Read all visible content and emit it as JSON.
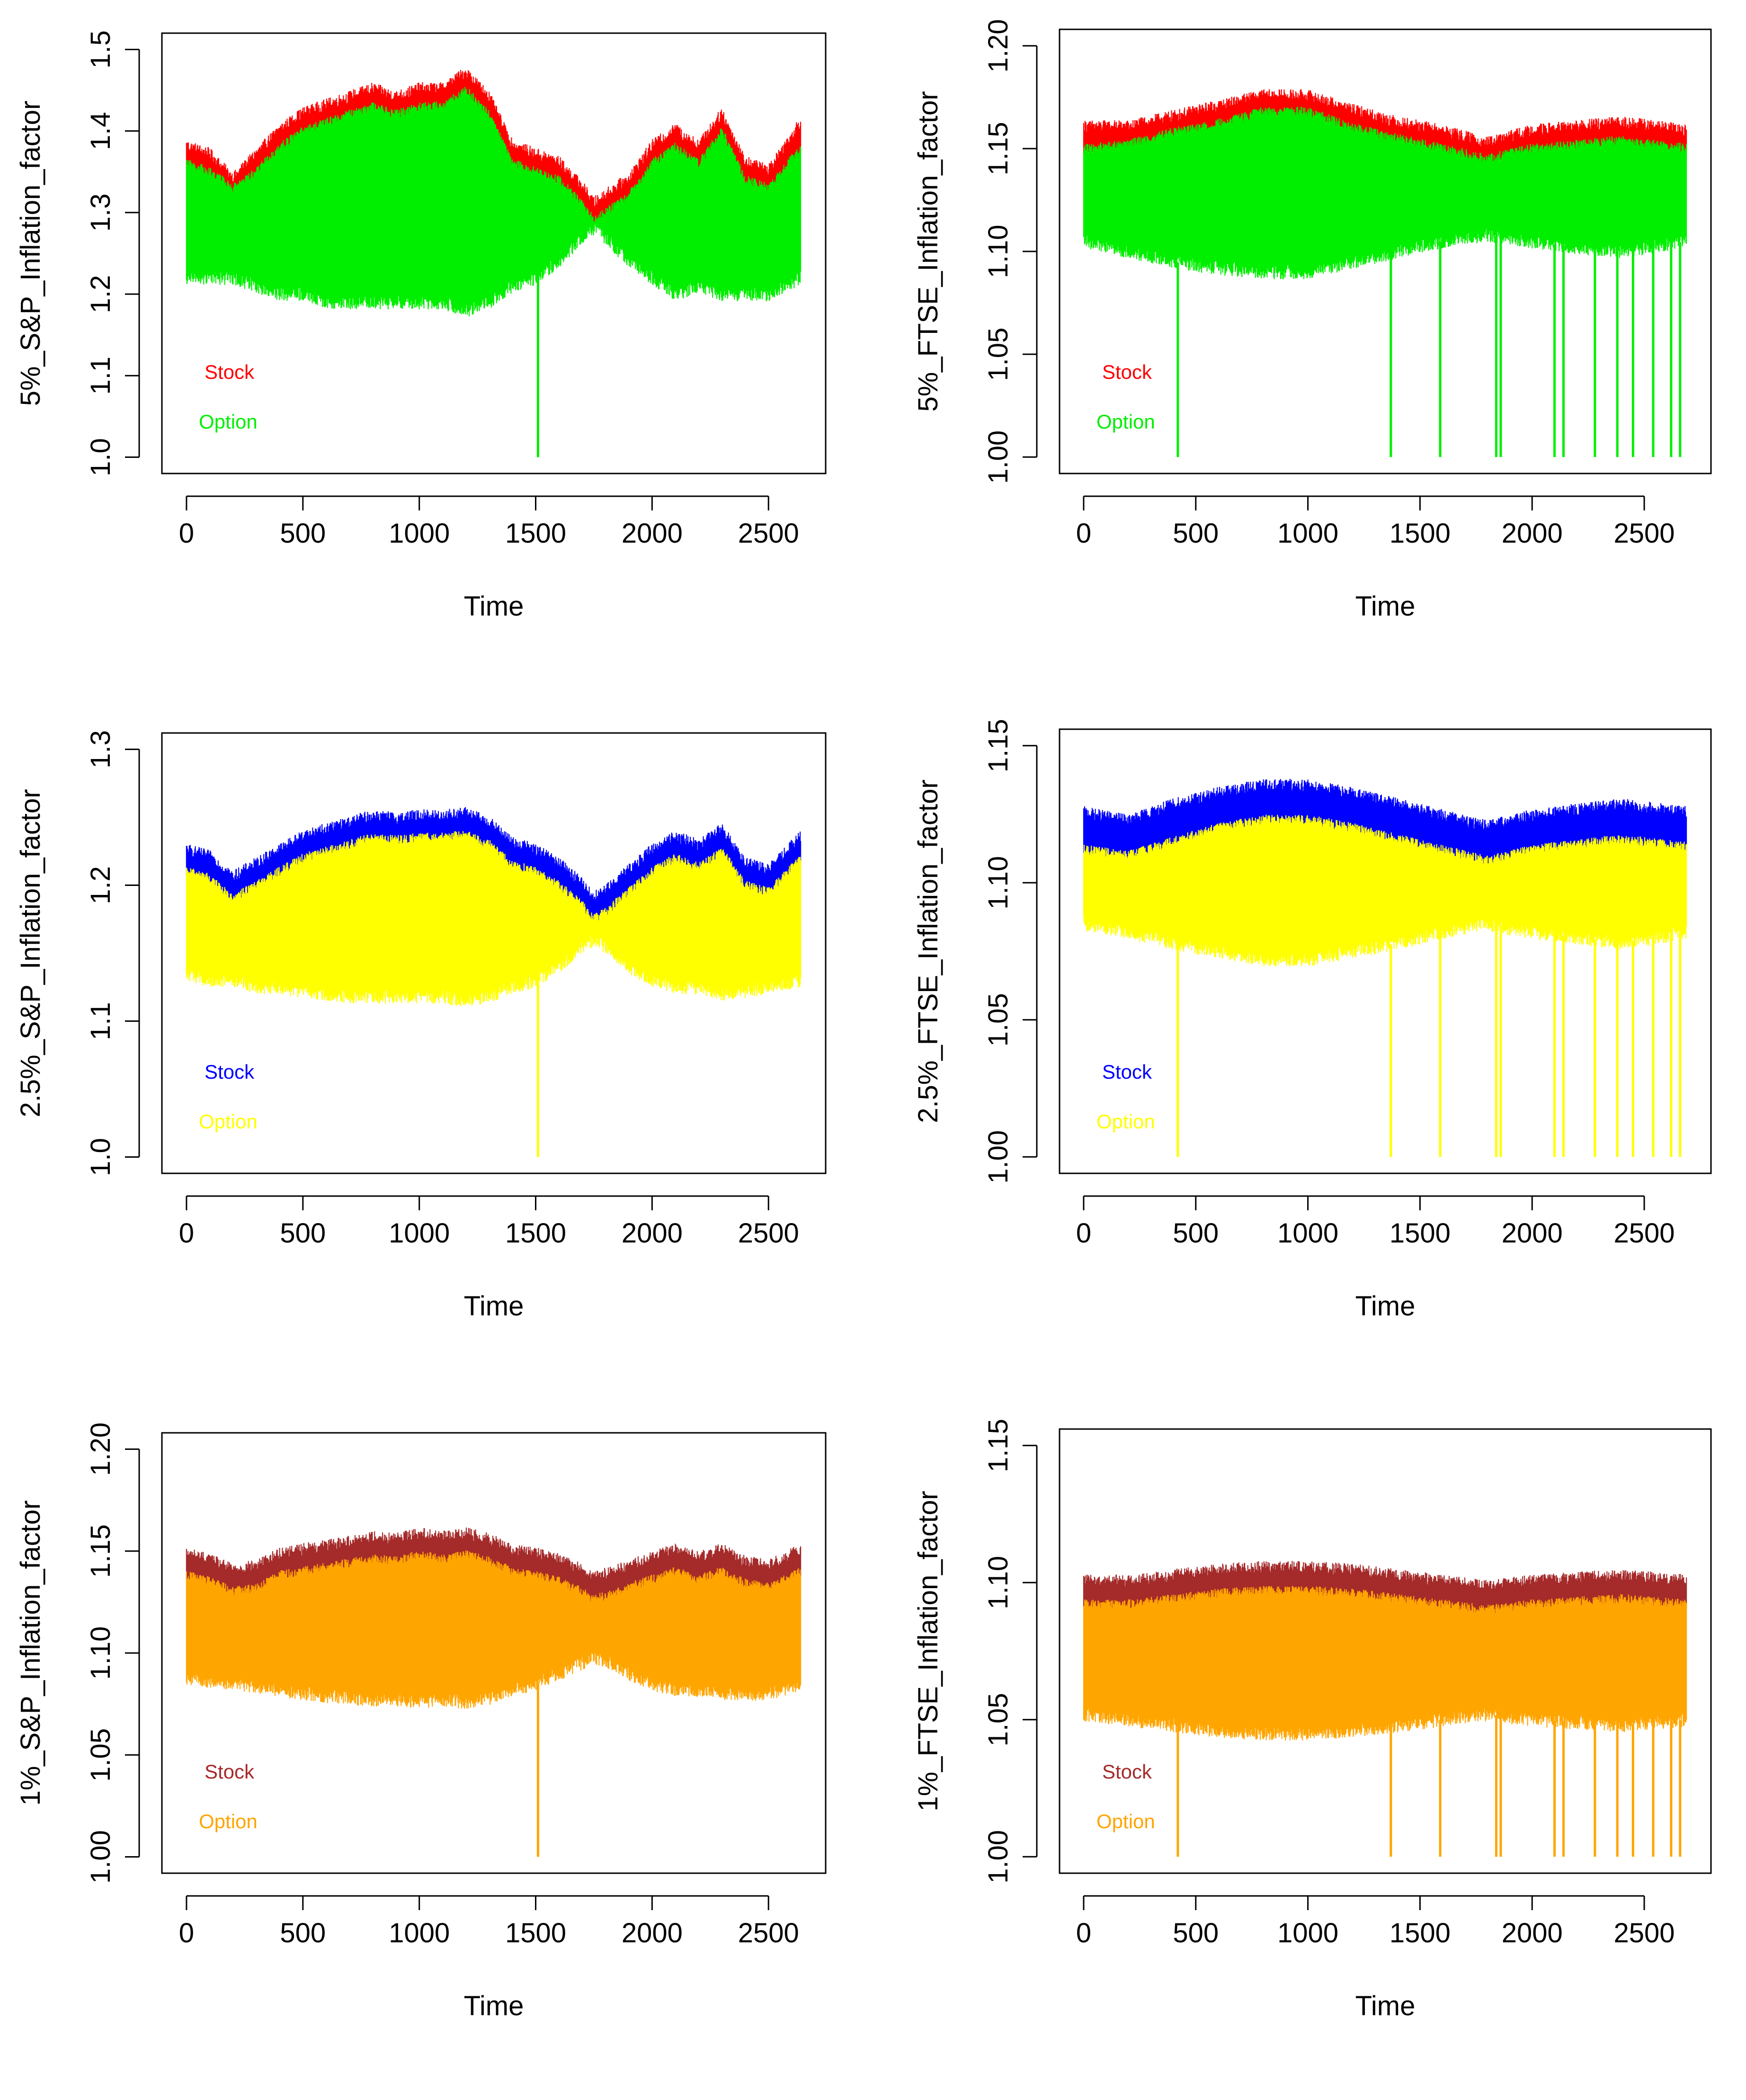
{
  "chart_data": [
    {
      "type": "line",
      "title": "",
      "xlabel": "Time",
      "ylabel": "5%_S&P_Inflation_factor",
      "xlim": [
        0,
        2640
      ],
      "ylim": [
        1.0,
        1.5
      ],
      "xticks": [
        0,
        500,
        1000,
        1500,
        2000,
        2500
      ],
      "yticks": [
        1.0,
        1.1,
        1.2,
        1.3,
        1.4,
        1.5
      ],
      "legend": "bottom-left",
      "n": 2640,
      "option_spikes_at": [
        1510
      ],
      "series": [
        {
          "name": "Stock",
          "color": "#ff0000",
          "envelope_x": [
            0,
            100,
            200,
            300,
            400,
            500,
            600,
            700,
            800,
            900,
            1000,
            1100,
            1200,
            1300,
            1400,
            1500,
            1600,
            1700,
            1750,
            1800,
            1900,
            2000,
            2100,
            2200,
            2300,
            2400,
            2500,
            2640
          ],
          "upper": [
            1.38,
            1.37,
            1.34,
            1.37,
            1.4,
            1.42,
            1.43,
            1.44,
            1.45,
            1.44,
            1.45,
            1.45,
            1.47,
            1.44,
            1.38,
            1.37,
            1.36,
            1.33,
            1.31,
            1.32,
            1.34,
            1.38,
            1.4,
            1.38,
            1.42,
            1.36,
            1.35,
            1.41
          ]
        },
        {
          "name": "Option",
          "color": "#00ee00",
          "envelope_x": [
            0,
            100,
            200,
            300,
            400,
            500,
            600,
            700,
            800,
            900,
            1000,
            1100,
            1200,
            1300,
            1400,
            1500,
            1600,
            1700,
            1750,
            1800,
            1900,
            2000,
            2100,
            2200,
            2300,
            2400,
            2500,
            2640
          ],
          "upper": [
            1.36,
            1.35,
            1.33,
            1.35,
            1.38,
            1.4,
            1.41,
            1.42,
            1.43,
            1.42,
            1.43,
            1.43,
            1.45,
            1.42,
            1.36,
            1.35,
            1.34,
            1.31,
            1.29,
            1.3,
            1.32,
            1.36,
            1.38,
            1.36,
            1.4,
            1.34,
            1.33,
            1.38
          ],
          "lower": [
            1.22,
            1.22,
            1.22,
            1.21,
            1.2,
            1.2,
            1.19,
            1.19,
            1.19,
            1.19,
            1.19,
            1.19,
            1.18,
            1.19,
            1.21,
            1.22,
            1.24,
            1.27,
            1.28,
            1.27,
            1.24,
            1.22,
            1.2,
            1.21,
            1.2,
            1.2,
            1.2,
            1.22
          ]
        }
      ]
    },
    {
      "type": "line",
      "title": "",
      "xlabel": "Time",
      "ylabel": "5%_FTSE_Inflation_factor",
      "xlim": [
        0,
        2690
      ],
      "ylim": [
        1.0,
        1.2
      ],
      "xticks": [
        0,
        500,
        1000,
        1500,
        2000,
        2500
      ],
      "yticks": [
        1.0,
        1.05,
        1.1,
        1.15,
        1.2
      ],
      "legend": "bottom-left",
      "n": 2690,
      "option_spikes_at": [
        420,
        1370,
        1590,
        1840,
        1860,
        2100,
        2140,
        2280,
        2380,
        2450,
        2540,
        2620,
        2660
      ],
      "series": [
        {
          "name": "Stock",
          "color": "#ff0000",
          "envelope_x": [
            0,
            200,
            400,
            600,
            800,
            1000,
            1200,
            1400,
            1600,
            1800,
            2000,
            2200,
            2400,
            2690
          ],
          "upper": [
            1.16,
            1.16,
            1.165,
            1.17,
            1.175,
            1.175,
            1.168,
            1.162,
            1.158,
            1.152,
            1.158,
            1.16,
            1.162,
            1.158
          ]
        },
        {
          "name": "Option",
          "color": "#00ee00",
          "envelope_x": [
            0,
            200,
            400,
            600,
            800,
            1000,
            1200,
            1400,
            1600,
            1800,
            2000,
            2200,
            2400,
            2690
          ],
          "upper": [
            1.15,
            1.152,
            1.158,
            1.162,
            1.168,
            1.168,
            1.16,
            1.155,
            1.15,
            1.145,
            1.15,
            1.152,
            1.154,
            1.15
          ],
          "lower": [
            1.105,
            1.1,
            1.095,
            1.092,
            1.09,
            1.09,
            1.095,
            1.1,
            1.105,
            1.108,
            1.105,
            1.102,
            1.1,
            1.105
          ]
        }
      ]
    },
    {
      "type": "line",
      "title": "",
      "xlabel": "Time",
      "ylabel": "2.5%_S&P_Inflation_factor",
      "xlim": [
        0,
        2640
      ],
      "ylim": [
        1.0,
        1.3
      ],
      "xticks": [
        0,
        500,
        1000,
        1500,
        2000,
        2500
      ],
      "yticks": [
        1.0,
        1.1,
        1.2,
        1.3
      ],
      "legend": "bottom-left",
      "n": 2640,
      "option_spikes_at": [
        1510
      ],
      "series": [
        {
          "name": "Stock",
          "color": "#0000ff",
          "envelope_x": [
            0,
            100,
            200,
            300,
            400,
            500,
            600,
            700,
            800,
            900,
            1000,
            1100,
            1200,
            1300,
            1400,
            1500,
            1600,
            1700,
            1750,
            1800,
            1900,
            2000,
            2100,
            2200,
            2300,
            2400,
            2500,
            2640
          ],
          "upper": [
            1.225,
            1.22,
            1.205,
            1.215,
            1.225,
            1.235,
            1.24,
            1.245,
            1.25,
            1.248,
            1.25,
            1.25,
            1.252,
            1.245,
            1.23,
            1.225,
            1.215,
            1.2,
            1.19,
            1.195,
            1.21,
            1.225,
            1.235,
            1.228,
            1.24,
            1.215,
            1.21,
            1.235
          ]
        },
        {
          "name": "Option",
          "color": "#ffff00",
          "envelope_x": [
            0,
            100,
            200,
            300,
            400,
            500,
            600,
            700,
            800,
            900,
            1000,
            1100,
            1200,
            1300,
            1400,
            1500,
            1600,
            1700,
            1750,
            1800,
            1900,
            2000,
            2100,
            2200,
            2300,
            2400,
            2500,
            2640
          ],
          "upper": [
            1.21,
            1.205,
            1.19,
            1.2,
            1.21,
            1.22,
            1.225,
            1.23,
            1.235,
            1.233,
            1.235,
            1.235,
            1.237,
            1.23,
            1.215,
            1.21,
            1.2,
            1.185,
            1.175,
            1.18,
            1.195,
            1.21,
            1.22,
            1.213,
            1.225,
            1.2,
            1.195,
            1.22
          ],
          "lower": [
            1.135,
            1.13,
            1.13,
            1.125,
            1.125,
            1.122,
            1.12,
            1.118,
            1.118,
            1.118,
            1.118,
            1.118,
            1.115,
            1.118,
            1.125,
            1.13,
            1.14,
            1.155,
            1.16,
            1.155,
            1.14,
            1.13,
            1.125,
            1.125,
            1.12,
            1.122,
            1.125,
            1.13
          ]
        }
      ]
    },
    {
      "type": "line",
      "title": "",
      "xlabel": "Time",
      "ylabel": "2.5%_FTSE_Inflation_factor",
      "xlim": [
        0,
        2690
      ],
      "ylim": [
        1.0,
        1.15
      ],
      "xticks": [
        0,
        500,
        1000,
        1500,
        2000,
        2500
      ],
      "yticks": [
        1.0,
        1.05,
        1.1,
        1.15
      ],
      "legend": "bottom-left",
      "n": 2690,
      "option_spikes_at": [
        420,
        1370,
        1590,
        1840,
        1860,
        2100,
        2140,
        2280,
        2380,
        2450,
        2540,
        2620,
        2660
      ],
      "series": [
        {
          "name": "Stock",
          "color": "#0000ff",
          "envelope_x": [
            0,
            200,
            400,
            600,
            800,
            1000,
            1200,
            1400,
            1600,
            1800,
            2000,
            2200,
            2400,
            2690
          ],
          "upper": [
            1.125,
            1.122,
            1.128,
            1.132,
            1.135,
            1.135,
            1.132,
            1.128,
            1.124,
            1.12,
            1.124,
            1.126,
            1.128,
            1.125
          ]
        },
        {
          "name": "Option",
          "color": "#ffff00",
          "envelope_x": [
            0,
            200,
            400,
            600,
            800,
            1000,
            1200,
            1400,
            1600,
            1800,
            2000,
            2200,
            2400,
            2690
          ],
          "upper": [
            1.112,
            1.11,
            1.115,
            1.12,
            1.123,
            1.123,
            1.12,
            1.116,
            1.112,
            1.108,
            1.112,
            1.114,
            1.116,
            1.113
          ],
          "lower": [
            1.085,
            1.082,
            1.078,
            1.075,
            1.072,
            1.072,
            1.075,
            1.078,
            1.082,
            1.085,
            1.082,
            1.08,
            1.078,
            1.082
          ]
        }
      ]
    },
    {
      "type": "line",
      "title": "",
      "xlabel": "Time",
      "ylabel": "1%_S&P_Inflation_factor",
      "xlim": [
        0,
        2640
      ],
      "ylim": [
        1.0,
        1.2
      ],
      "xticks": [
        0,
        500,
        1000,
        1500,
        2000,
        2500
      ],
      "yticks": [
        1.0,
        1.05,
        1.1,
        1.15,
        1.2
      ],
      "legend": "bottom-left",
      "n": 2640,
      "option_spikes_at": [
        1510
      ],
      "series": [
        {
          "name": "Stock",
          "color": "#a52a2a",
          "envelope_x": [
            0,
            100,
            200,
            300,
            400,
            500,
            600,
            700,
            800,
            900,
            1000,
            1100,
            1200,
            1300,
            1400,
            1500,
            1600,
            1700,
            1750,
            1800,
            1900,
            2000,
            2100,
            2200,
            2300,
            2400,
            2500,
            2640
          ],
          "upper": [
            1.148,
            1.145,
            1.14,
            1.142,
            1.148,
            1.15,
            1.152,
            1.154,
            1.156,
            1.155,
            1.158,
            1.156,
            1.158,
            1.155,
            1.15,
            1.148,
            1.145,
            1.14,
            1.136,
            1.138,
            1.142,
            1.146,
            1.15,
            1.146,
            1.15,
            1.144,
            1.142,
            1.15
          ]
        },
        {
          "name": "Option",
          "color": "#ffa500",
          "envelope_x": [
            0,
            100,
            200,
            300,
            400,
            500,
            600,
            700,
            800,
            900,
            1000,
            1100,
            1200,
            1300,
            1400,
            1500,
            1600,
            1700,
            1750,
            1800,
            1900,
            2000,
            2100,
            2200,
            2300,
            2400,
            2500,
            2640
          ],
          "upper": [
            1.138,
            1.135,
            1.13,
            1.132,
            1.138,
            1.14,
            1.142,
            1.144,
            1.146,
            1.145,
            1.148,
            1.146,
            1.148,
            1.145,
            1.14,
            1.138,
            1.135,
            1.13,
            1.126,
            1.128,
            1.132,
            1.136,
            1.14,
            1.136,
            1.14,
            1.134,
            1.132,
            1.14
          ],
          "lower": [
            1.088,
            1.086,
            1.085,
            1.083,
            1.082,
            1.08,
            1.079,
            1.078,
            1.077,
            1.077,
            1.076,
            1.077,
            1.076,
            1.078,
            1.082,
            1.085,
            1.09,
            1.095,
            1.098,
            1.096,
            1.09,
            1.085,
            1.082,
            1.082,
            1.08,
            1.08,
            1.08,
            1.085
          ]
        }
      ]
    },
    {
      "type": "line",
      "title": "",
      "xlabel": "Time",
      "ylabel": "1%_FTSE_Inflation_factor",
      "xlim": [
        0,
        2690
      ],
      "ylim": [
        1.0,
        1.15
      ],
      "xticks": [
        0,
        500,
        1000,
        1500,
        2000,
        2500
      ],
      "yticks": [
        1.0,
        1.05,
        1.1,
        1.15
      ],
      "legend": "bottom-left",
      "n": 2690,
      "option_spikes_at": [
        420,
        1370,
        1590,
        1840,
        1860,
        2100,
        2140,
        2280,
        2380,
        2450,
        2540,
        2620,
        2660
      ],
      "series": [
        {
          "name": "Stock",
          "color": "#a52a2a",
          "envelope_x": [
            0,
            200,
            400,
            600,
            800,
            1000,
            1200,
            1400,
            1600,
            1800,
            2000,
            2200,
            2400,
            2690
          ],
          "upper": [
            1.1,
            1.1,
            1.102,
            1.104,
            1.105,
            1.105,
            1.104,
            1.102,
            1.1,
            1.098,
            1.1,
            1.101,
            1.102,
            1.1
          ]
        },
        {
          "name": "Option",
          "color": "#ffa500",
          "envelope_x": [
            0,
            200,
            400,
            600,
            800,
            1000,
            1200,
            1400,
            1600,
            1800,
            2000,
            2200,
            2400,
            2690
          ],
          "upper": [
            1.092,
            1.092,
            1.094,
            1.096,
            1.097,
            1.097,
            1.096,
            1.094,
            1.092,
            1.09,
            1.092,
            1.093,
            1.094,
            1.092
          ],
          "lower": [
            1.052,
            1.05,
            1.048,
            1.046,
            1.045,
            1.045,
            1.046,
            1.048,
            1.05,
            1.052,
            1.05,
            1.049,
            1.048,
            1.05
          ]
        }
      ]
    }
  ]
}
